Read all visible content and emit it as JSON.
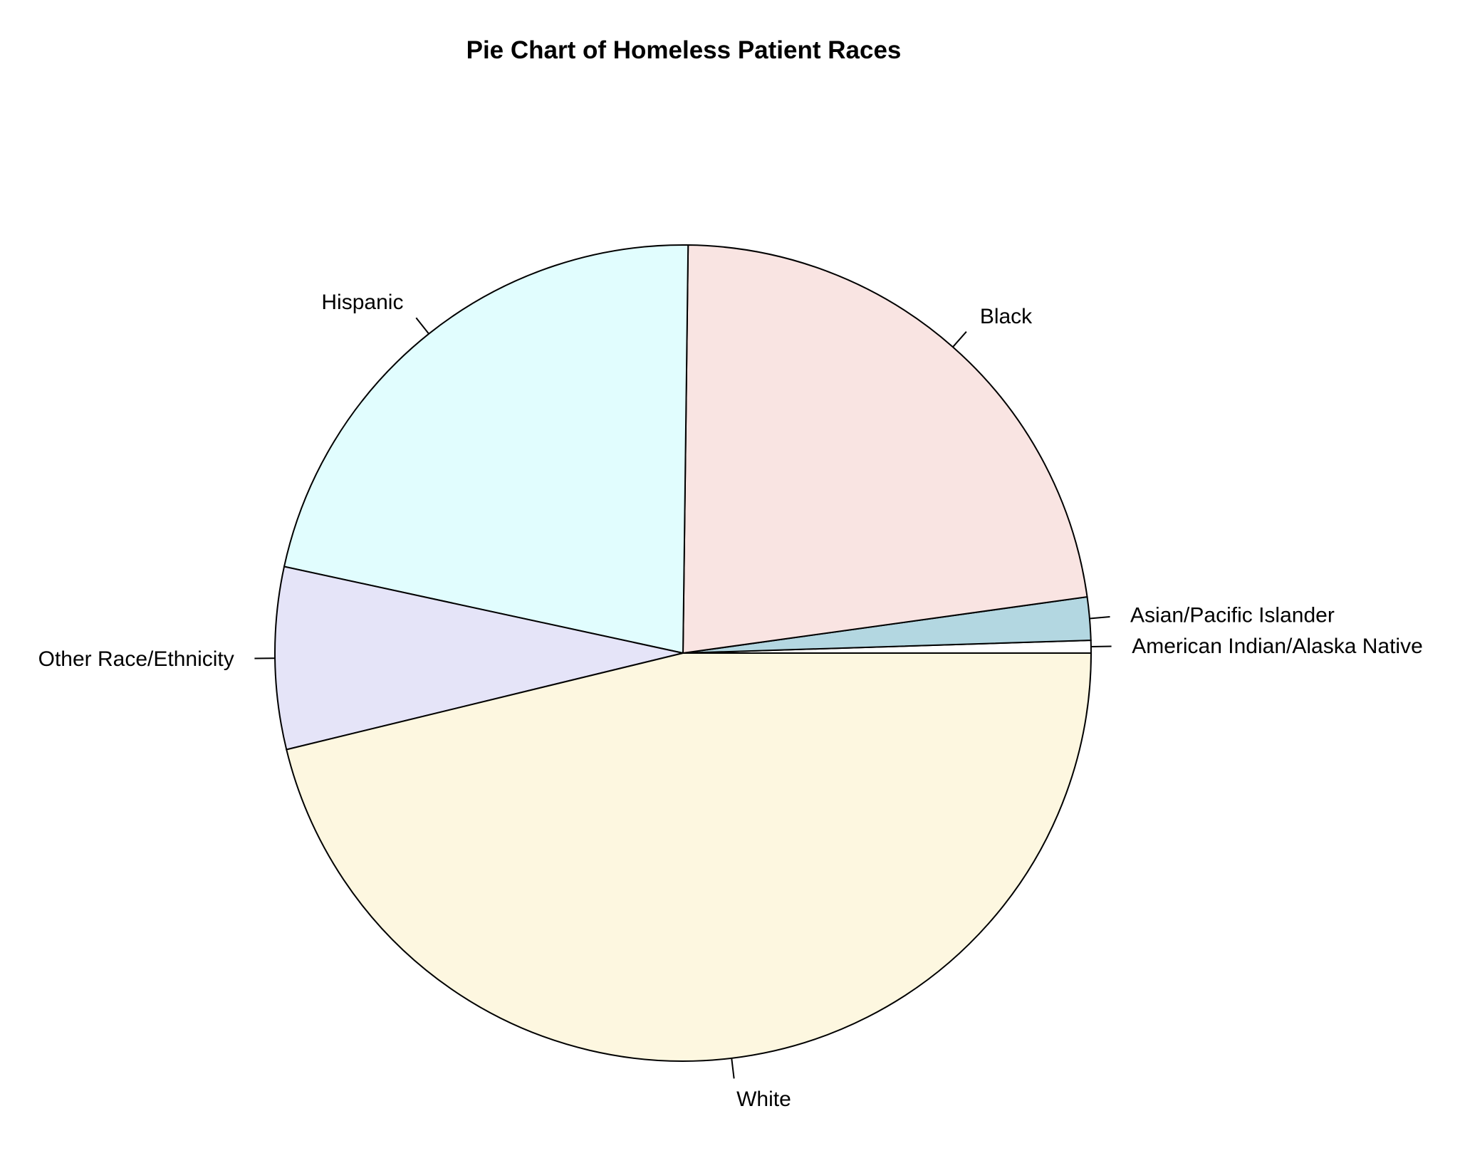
{
  "chart_data": {
    "type": "pie",
    "title": "Pie Chart of Homeless Patient Races",
    "legend": "none",
    "start_angle_deg": 0,
    "direction": "counterclockwise",
    "slices": [
      {
        "label": "American Indian/Alaska Native",
        "value": 0.5,
        "color": "#ffffff"
      },
      {
        "label": "Asian/Pacific Islander",
        "value": 1.7,
        "color": "#b3d7e1"
      },
      {
        "label": "Black",
        "value": 22.6,
        "color": "#f9e4e2"
      },
      {
        "label": "Hispanic",
        "value": 21.8,
        "color": "#e1fdfe"
      },
      {
        "label": "Other Race/Ethnicity",
        "value": 7.2,
        "color": "#e5e4f8"
      },
      {
        "label": "White",
        "value": 46.2,
        "color": "#fdf7e0"
      }
    ]
  }
}
